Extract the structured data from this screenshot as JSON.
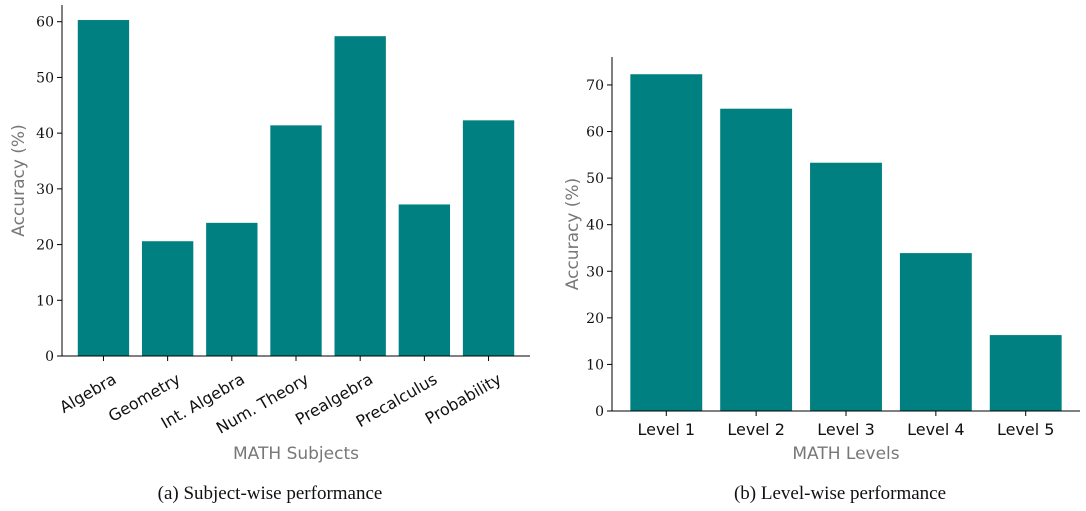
{
  "chart_data": [
    {
      "type": "bar",
      "categories": [
        "Algebra",
        "Geometry",
        "Int. Algebra",
        "Num. Theory",
        "Prealgebra",
        "Precalculus",
        "Probability"
      ],
      "values": [
        60.3,
        20.6,
        23.9,
        41.4,
        57.4,
        27.2,
        42.3
      ],
      "xlabel": "MATH Subjects",
      "ylabel": "Accuracy (%)",
      "ylim": [
        0,
        63
      ],
      "yticks": [
        0,
        10,
        20,
        30,
        40,
        50,
        60
      ],
      "color": "#008080",
      "caption": "(a)  Subject-wise performance",
      "grid": false
    },
    {
      "type": "bar",
      "categories": [
        "Level 1",
        "Level 2",
        "Level 3",
        "Level 4",
        "Level 5"
      ],
      "values": [
        72.3,
        64.9,
        53.3,
        33.9,
        16.3
      ],
      "xlabel": "MATH Levels",
      "ylabel": "Accuracy (%)",
      "ylim": [
        0,
        76
      ],
      "yticks": [
        0,
        10,
        20,
        30,
        40,
        50,
        60,
        70
      ],
      "color": "#008080",
      "caption": "(b)  Level-wise performance",
      "grid": false
    }
  ]
}
